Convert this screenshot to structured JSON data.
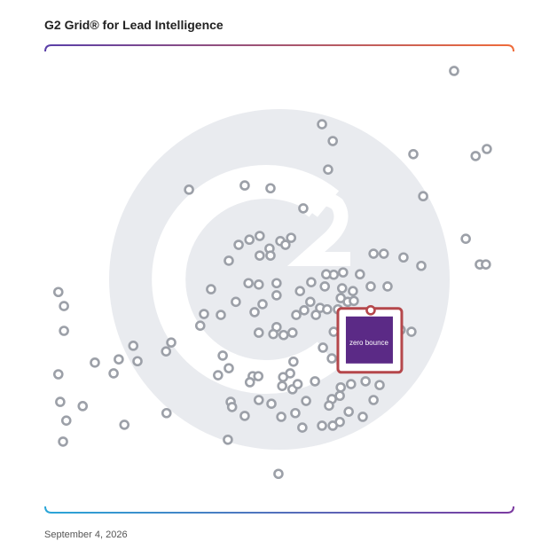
{
  "chart_data": {
    "type": "scatter",
    "title": "G2 Grid® for Lead Intelligence",
    "date": "September 4, 2026",
    "xlim": [
      0,
      100
    ],
    "ylim": [
      0,
      100
    ],
    "color": "#9ca0a8",
    "highlight": {
      "name": "zero bounce",
      "x": 69.5,
      "y": 43.3,
      "color": "#b5474b"
    },
    "x": [
      87.3,
      94.3,
      91.9,
      78.6,
      80.7,
      89.8,
      92.8,
      94.1,
      80.3,
      76.5,
      70.1,
      72.3,
      67.2,
      63.6,
      61.6,
      60.0,
      59.1,
      61.4,
      60.4,
      55.1,
      30.7,
      42.6,
      48.1,
      45.8,
      43.6,
      41.3,
      50.2,
      52.5,
      51.3,
      47.9,
      45.8,
      48.1,
      39.2,
      35.4,
      69.5,
      73.1,
      65.7,
      63.4,
      59.7,
      56.8,
      54.4,
      56.6,
      58.7,
      57.8,
      55.3,
      53.6,
      63.1,
      64.6,
      65.9,
      60.2,
      62.5,
      75.9,
      78.2,
      59.3,
      61.2,
      61.6,
      43.4,
      45.6,
      49.4,
      49.4,
      40.7,
      46.4,
      44.7,
      37.5,
      33.9,
      33.1,
      49.4,
      52.8,
      50.9,
      48.7,
      45.6,
      26.9,
      25.8,
      18.8,
      15.7,
      19.7,
      10.6,
      14.6,
      2.8,
      4.0,
      2.8,
      4.0,
      37.9,
      39.2,
      36.9,
      53.0,
      52.3,
      50.8,
      44.3,
      45.5,
      43.7,
      50.6,
      52.8,
      53.9,
      57.6,
      63.1,
      65.3,
      68.4,
      71.4,
      61.2,
      62.9,
      60.6,
      55.7,
      39.6,
      39.9,
      45.6,
      48.3,
      50.4,
      53.4,
      42.6,
      25.9,
      70.1,
      64.8,
      67.8,
      62.9,
      61.4,
      59.1,
      54.9,
      3.2,
      8.0,
      4.5,
      3.8,
      16.9,
      39.0,
      49.8
    ],
    "y": [
      94.5,
      77.8,
      76.3,
      76.7,
      67.7,
      58.6,
      53.1,
      53.1,
      52.8,
      54.6,
      55.4,
      55.4,
      51.0,
      51.4,
      50.9,
      51.0,
      83.1,
      79.5,
      73.4,
      65.1,
      69.1,
      70.0,
      69.4,
      59.2,
      58.4,
      57.3,
      58.1,
      58.8,
      57.3,
      56.5,
      55.0,
      55.0,
      53.9,
      47.8,
      48.4,
      48.4,
      47.4,
      48.0,
      48.4,
      49.3,
      47.4,
      45.1,
      43.8,
      42.3,
      43.3,
      42.3,
      45.9,
      45.1,
      45.3,
      43.5,
      43.5,
      39.1,
      38.7,
      35.3,
      33.0,
      38.7,
      49.1,
      48.8,
      49.1,
      46.5,
      45.1,
      44.6,
      42.9,
      42.3,
      42.5,
      40.0,
      39.7,
      38.5,
      38.0,
      38.2,
      38.5,
      36.4,
      34.5,
      35.7,
      32.8,
      32.4,
      32.1,
      29.8,
      29.6,
      44.2,
      47.2,
      38.9,
      33.6,
      30.9,
      29.4,
      32.3,
      29.8,
      29.0,
      29.2,
      29.2,
      27.9,
      27.1,
      26.4,
      27.5,
      28.1,
      26.8,
      27.5,
      28.1,
      27.3,
      24.3,
      25.0,
      22.9,
      23.9,
      23.7,
      22.6,
      24.1,
      23.3,
      20.5,
      21.3,
      20.7,
      21.3,
      24.1,
      21.6,
      20.5,
      19.4,
      18.6,
      18.6,
      18.2,
      23.7,
      22.8,
      19.7,
      15.2,
      18.8,
      15.6,
      8.3
    ]
  }
}
